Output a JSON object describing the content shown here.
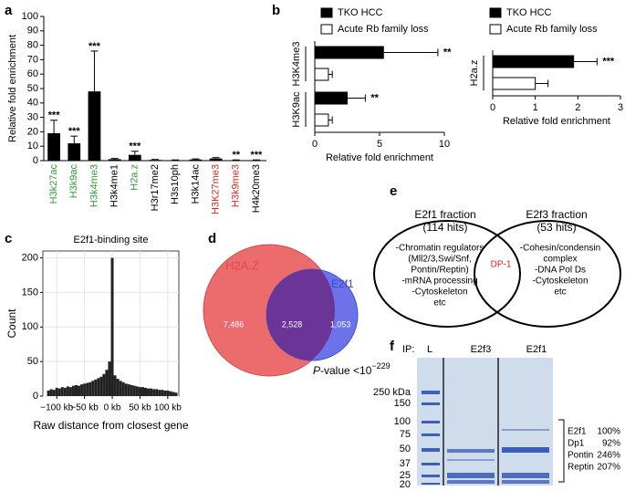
{
  "chart_data": [
    {
      "panel": "a",
      "type": "bar",
      "y_label": "Relative fold enrichment",
      "categories": [
        "H3k27ac",
        "H3k9ac",
        "H3k4me3",
        "H3k4me1",
        "H2a.z",
        "H3r17me2",
        "H3s10ph",
        "H3k14ac",
        "H3K27me3",
        "H3k9me3",
        "H4k20me3"
      ],
      "category_colors": [
        "#2e9a3c",
        "#2e9a3c",
        "#2e9a3c",
        "#000000",
        "#2e9a3c",
        "#000000",
        "#000000",
        "#000000",
        "#d62a20",
        "#d62a20",
        "#000000"
      ],
      "values": [
        19,
        12,
        48,
        1,
        4,
        0.5,
        0.3,
        0.8,
        1.5,
        0.3,
        0.3
      ],
      "errors": [
        9,
        5,
        28,
        0.5,
        2.5,
        0.3,
        0.2,
        0.4,
        0.6,
        0.2,
        0.2
      ],
      "annotations": [
        "***",
        "***",
        "***",
        null,
        "***",
        null,
        null,
        null,
        null,
        "**",
        "***"
      ],
      "color": "#000000",
      "ylim": [
        0,
        100
      ],
      "yticks": [
        0,
        10,
        20,
        30,
        40,
        50,
        60,
        70,
        80,
        90,
        100
      ]
    },
    {
      "panel": "b",
      "type": "hbar",
      "categories": [
        "H3K4me3",
        "H3K9ac"
      ],
      "series": [
        {
          "name": "TKO HCC",
          "color": "#000000",
          "values": [
            5.3,
            2.5
          ],
          "errors": [
            4.2,
            1.4
          ]
        },
        {
          "name": "Acute Rb family loss",
          "color": "#ffffff",
          "values": [
            1.05,
            1.05
          ],
          "errors": [
            0.3,
            0.3
          ]
        }
      ],
      "annotations": [
        "**",
        "**"
      ],
      "x_label": "Relative fold enrichment",
      "xlim": [
        0,
        10
      ],
      "xticks": [
        0,
        5,
        10
      ]
    },
    {
      "type": "hbar",
      "categories": [
        "H2a.z"
      ],
      "series": [
        {
          "name": "TKO HCC",
          "color": "#000000",
          "values": [
            1.9
          ],
          "errors": [
            0.55
          ]
        },
        {
          "name": "Acute Rb family  loss",
          "color": "#ffffff",
          "values": [
            1.0
          ],
          "errors": [
            0.3
          ]
        }
      ],
      "annotations": [
        "***"
      ],
      "x_label": "Relative fold enrichment",
      "xlim": [
        0,
        3
      ],
      "xticks": [
        0,
        1,
        2,
        3
      ]
    },
    {
      "panel": "c",
      "type": "bar",
      "title": "E2f1-binding site",
      "x_label": "Raw distance from closest gene",
      "y_label": "Count",
      "x": [
        -115,
        -110,
        -105,
        -100,
        -95,
        -90,
        -85,
        -80,
        -75,
        -70,
        -65,
        -60,
        -55,
        -50,
        -45,
        -40,
        -35,
        -30,
        -25,
        -20,
        -15,
        -10,
        -5,
        0,
        5,
        10,
        15,
        20,
        25,
        30,
        35,
        40,
        45,
        50,
        55,
        60,
        65,
        70,
        75,
        80,
        85,
        90,
        95,
        100,
        105,
        110,
        115
      ],
      "values": [
        8,
        10,
        9,
        12,
        11,
        13,
        12,
        14,
        13,
        15,
        16,
        15,
        17,
        18,
        19,
        20,
        22,
        24,
        26,
        28,
        32,
        38,
        50,
        200,
        30,
        25,
        22,
        20,
        18,
        17,
        16,
        15,
        14,
        13,
        13,
        12,
        11,
        11,
        10,
        10,
        9,
        9,
        8,
        8,
        7,
        6,
        5
      ],
      "color": "#222222",
      "xlim": [
        -125,
        120
      ],
      "xticks": [
        {
          "value": -100,
          "label": "−100 kb"
        },
        {
          "value": -50,
          "label": "−50 kb"
        },
        {
          "value": 0,
          "label": "0 kb"
        },
        {
          "value": 50,
          "label": "50 kb"
        },
        {
          "value": 100,
          "label": "100 kb"
        }
      ],
      "ylim": [
        0,
        210
      ],
      "yticks": [
        0,
        50,
        100,
        150,
        200
      ],
      "grid": true
    }
  ],
  "venn": {
    "panel": "d",
    "sets": [
      "H2A.Z",
      "E2f1"
    ],
    "regions": [
      "7,486",
      "2,528",
      "1,053"
    ],
    "p_value": {
      "prefix": "P",
      "text": "-value <10",
      "exponent": "−229"
    }
  },
  "diagram": {
    "panel": "e",
    "left": {
      "title": "E2f1 fraction",
      "hits": "(114 hits)",
      "lines": [
        "-Chromatin regulators",
        "(Mll2/3,Swi/Snf,",
        "Pontin/Reptin)",
        "-mRNA processing",
        "-Cytoskeleton",
        "etc"
      ]
    },
    "shared": "DP-1",
    "right": {
      "title": "E2f3 fraction",
      "hits": "(53 hits)",
      "lines": [
        "-Cohesin/condensin",
        "complex",
        "-DNA Pol Ds",
        "-Cytoskeleton",
        "etc"
      ]
    }
  },
  "gel": {
    "panel": "f",
    "ip_label": "IP:",
    "lanes": [
      "L",
      "E2f3",
      "E2f1"
    ],
    "markers": [
      "250 kDa",
      "150",
      "100",
      "75",
      "50",
      "37",
      "25",
      "20"
    ],
    "bands": [
      {
        "name": "E2f1",
        "percent": "100%"
      },
      {
        "name": "Dp1",
        "percent": "92%"
      },
      {
        "name": "Pontin",
        "percent": "246%"
      },
      {
        "name": "Reptin",
        "percent": "207%"
      }
    ]
  }
}
